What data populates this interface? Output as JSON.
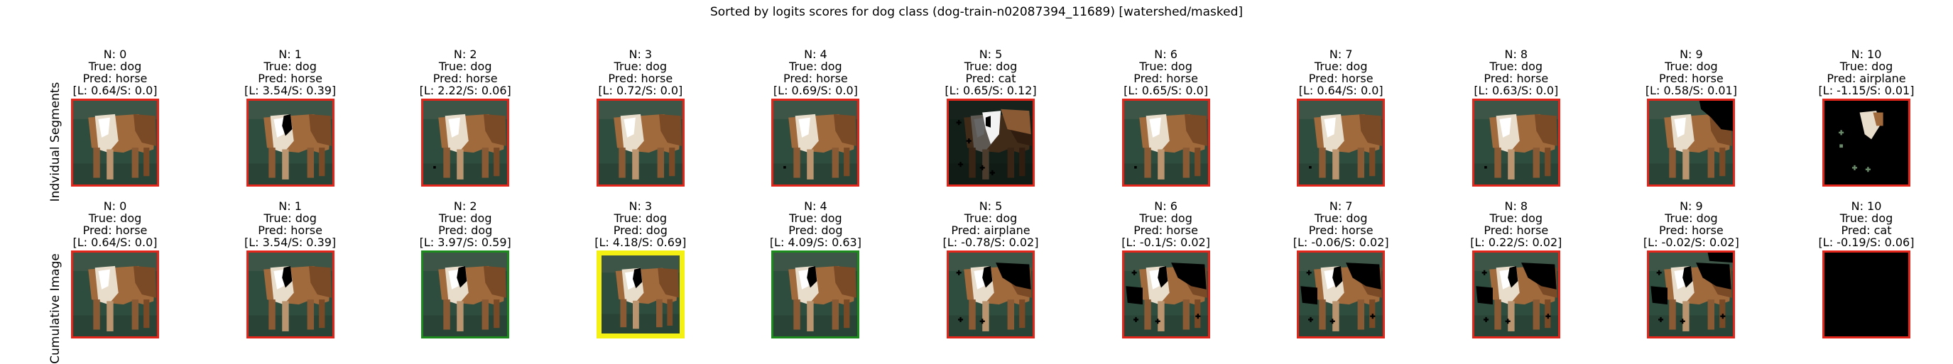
{
  "title": "Sorted by logits scores for dog class (dog-train-n02087394_11689) [watershed/masked]",
  "row_labels": [
    "Indvidual Segments",
    "Cumulative Image"
  ],
  "chart_data": {
    "type": "image-grid",
    "title": "Sorted by logits scores for dog class (dog-train-n02087394_11689) [watershed/masked]",
    "rows": [
      {
        "name": "Indvidual Segments",
        "panels": [
          {
            "n": "N: 0",
            "true": "True: dog",
            "pred": "Pred: horse",
            "score": "[L: 0.64/S: 0.0]",
            "logit": 0.64,
            "softmax": 0.0,
            "border": "red",
            "mask": "full"
          },
          {
            "n": "N: 1",
            "true": "True: dog",
            "pred": "Pred: horse",
            "score": "[L: 3.54/S: 0.39]",
            "logit": 3.54,
            "softmax": 0.39,
            "border": "red",
            "mask": "chest"
          },
          {
            "n": "N: 2",
            "true": "True: dog",
            "pred": "Pred: horse",
            "score": "[L: 2.22/S: 0.06]",
            "logit": 2.22,
            "softmax": 0.06,
            "border": "red",
            "mask": "dot"
          },
          {
            "n": "N: 3",
            "true": "True: dog",
            "pred": "Pred: horse",
            "score": "[L: 0.72/S: 0.0]",
            "logit": 0.72,
            "softmax": 0.0,
            "border": "red",
            "mask": "full"
          },
          {
            "n": "N: 4",
            "true": "True: dog",
            "pred": "Pred: horse",
            "score": "[L: 0.69/S: 0.0]",
            "logit": 0.69,
            "softmax": 0.0,
            "border": "red",
            "mask": "dot"
          },
          {
            "n": "N: 5",
            "true": "True: dog",
            "pred": "Pred: cat",
            "score": "[L: 0.65/S: 0.12]",
            "logit": 0.65,
            "softmax": 0.12,
            "border": "red",
            "mask": "sparse"
          },
          {
            "n": "N: 6",
            "true": "True: dog",
            "pred": "Pred: horse",
            "score": "[L: 0.65/S: 0.0]",
            "logit": 0.65,
            "softmax": 0.0,
            "border": "red",
            "mask": "dot"
          },
          {
            "n": "N: 7",
            "true": "True: dog",
            "pred": "Pred: horse",
            "score": "[L: 0.64/S: 0.0]",
            "logit": 0.64,
            "softmax": 0.0,
            "border": "red",
            "mask": "dot"
          },
          {
            "n": "N: 8",
            "true": "True: dog",
            "pred": "Pred: horse",
            "score": "[L: 0.63/S: 0.0]",
            "logit": 0.63,
            "softmax": 0.0,
            "border": "red",
            "mask": "dot"
          },
          {
            "n": "N: 9",
            "true": "True: dog",
            "pred": "Pred: horse",
            "score": "[L: 0.58/S: 0.01]",
            "logit": 0.58,
            "softmax": 0.01,
            "border": "red",
            "mask": "corner"
          },
          {
            "n": "N: 10",
            "true": "True: dog",
            "pred": "Pred: airplane",
            "score": "[L: -1.15/S: 0.01]",
            "logit": -1.15,
            "softmax": 0.01,
            "border": "red",
            "mask": "black-chest"
          }
        ]
      },
      {
        "name": "Cumulative Image",
        "panels": [
          {
            "n": "N: 0",
            "true": "True: dog",
            "pred": "Pred: horse",
            "score": "[L: 0.64/S: 0.0]",
            "logit": 0.64,
            "softmax": 0.0,
            "border": "red",
            "mask": "full"
          },
          {
            "n": "N: 1",
            "true": "True: dog",
            "pred": "Pred: horse",
            "score": "[L: 3.54/S: 0.39]",
            "logit": 3.54,
            "softmax": 0.39,
            "border": "red",
            "mask": "chest"
          },
          {
            "n": "N: 2",
            "true": "True: dog",
            "pred": "Pred: dog",
            "score": "[L: 3.97/S: 0.59]",
            "logit": 3.97,
            "softmax": 0.59,
            "border": "green",
            "mask": "chest"
          },
          {
            "n": "N: 3",
            "true": "True: dog",
            "pred": "Pred: dog",
            "score": "[L: 4.18/S: 0.69]",
            "logit": 4.18,
            "softmax": 0.69,
            "border": "yellow",
            "mask": "chest"
          },
          {
            "n": "N: 4",
            "true": "True: dog",
            "pred": "Pred: dog",
            "score": "[L: 4.09/S: 0.63]",
            "logit": 4.09,
            "softmax": 0.63,
            "border": "green",
            "mask": "chest"
          },
          {
            "n": "N: 5",
            "true": "True: dog",
            "pred": "Pred: airplane",
            "score": "[L: -0.78/S: 0.02]",
            "logit": -0.78,
            "softmax": 0.02,
            "border": "red",
            "mask": "cum5"
          },
          {
            "n": "N: 6",
            "true": "True: dog",
            "pred": "Pred: horse",
            "score": "[L: -0.1/S: 0.02]",
            "logit": -0.1,
            "softmax": 0.02,
            "border": "red",
            "mask": "cum6"
          },
          {
            "n": "N: 7",
            "true": "True: dog",
            "pred": "Pred: horse",
            "score": "[L: -0.06/S: 0.02]",
            "logit": -0.06,
            "softmax": 0.02,
            "border": "red",
            "mask": "cum6"
          },
          {
            "n": "N: 8",
            "true": "True: dog",
            "pred": "Pred: horse",
            "score": "[L: 0.22/S: 0.02]",
            "logit": 0.22,
            "softmax": 0.02,
            "border": "red",
            "mask": "cum6"
          },
          {
            "n": "N: 9",
            "true": "True: dog",
            "pred": "Pred: horse",
            "score": "[L: -0.02/S: 0.02]",
            "logit": -0.02,
            "softmax": 0.02,
            "border": "red",
            "mask": "cum9"
          },
          {
            "n": "N: 10",
            "true": "True: dog",
            "pred": "Pred: cat",
            "score": "[L: -0.19/S: 0.06]",
            "logit": -0.19,
            "softmax": 0.06,
            "border": "red",
            "mask": "black"
          }
        ]
      }
    ],
    "border_colors": {
      "red": "#e3261c",
      "green": "#1c8a1c",
      "yellow": "#f4f112"
    }
  }
}
